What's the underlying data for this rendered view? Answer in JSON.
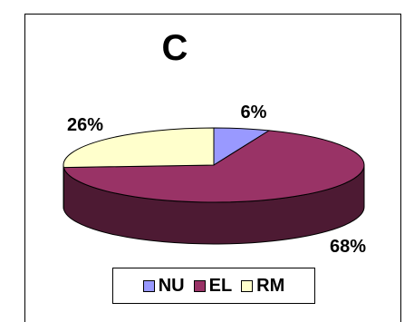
{
  "chart_data": {
    "type": "pie",
    "title": "C",
    "categories": [
      "NU",
      "EL",
      "RM"
    ],
    "values": [
      6,
      68,
      26
    ],
    "data_labels": [
      "6%",
      "68%",
      "26%"
    ],
    "colors": [
      "#9999ff",
      "#993366",
      "#ffffcc"
    ],
    "side_colors": [
      "#4d4d80",
      "#4d1a33",
      "#808066"
    ],
    "legend_position": "bottom"
  }
}
